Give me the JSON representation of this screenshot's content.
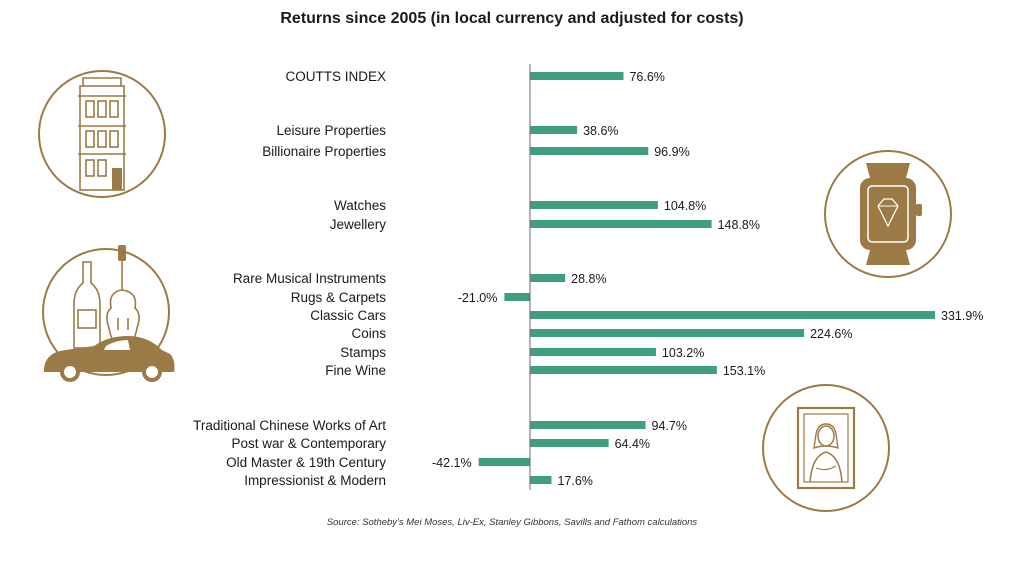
{
  "chart_data": {
    "type": "bar",
    "orientation": "horizontal",
    "title": "Returns since 2005 (in local currency and adjusted for costs)",
    "source": "Source: Sotheby's Mei Moses, Liv-Ex, Stanley Gibbons, Savills and Fathom calculations",
    "categories": [
      "COUTTS INDEX",
      "Leisure Properties",
      "Billionaire Properties",
      "Watches",
      "Jewellery",
      "Rare Musical Instruments",
      "Rugs & Carpets",
      "Classic Cars",
      "Coins",
      "Stamps",
      "Fine Wine",
      "Traditional Chinese Works of Art",
      "Post war & Contemporary",
      "Old Master & 19th Century",
      "Impressionist & Modern"
    ],
    "values": [
      76.6,
      38.6,
      96.9,
      104.8,
      148.8,
      28.8,
      -21.0,
      331.9,
      224.6,
      103.2,
      153.1,
      94.7,
      64.4,
      -42.1,
      17.6
    ],
    "labels": [
      "76.6%",
      "38.6%",
      "96.9%",
      "104.8%",
      "148.8%",
      "28.8%",
      "-21.0%",
      "331.9%",
      "224.6%",
      "103.2%",
      "153.1%",
      "94.7%",
      "64.4%",
      "-42.1%",
      "17.6%"
    ],
    "groups": [
      [
        0
      ],
      [
        1,
        2
      ],
      [
        3,
        4
      ],
      [
        5,
        6,
        7,
        8,
        9,
        10
      ],
      [
        11,
        12,
        13,
        14
      ]
    ],
    "unit": "%",
    "bar_color": "#3f9d80",
    "axis_color": "#6a6a6a",
    "grid": false,
    "legend": "none"
  },
  "decoration": {
    "accent_color": "#9c7a45",
    "icons": [
      "building-icon",
      "diamond-watch-icon",
      "wine-violin-car-icon",
      "mona-lisa-frame-icon"
    ]
  }
}
